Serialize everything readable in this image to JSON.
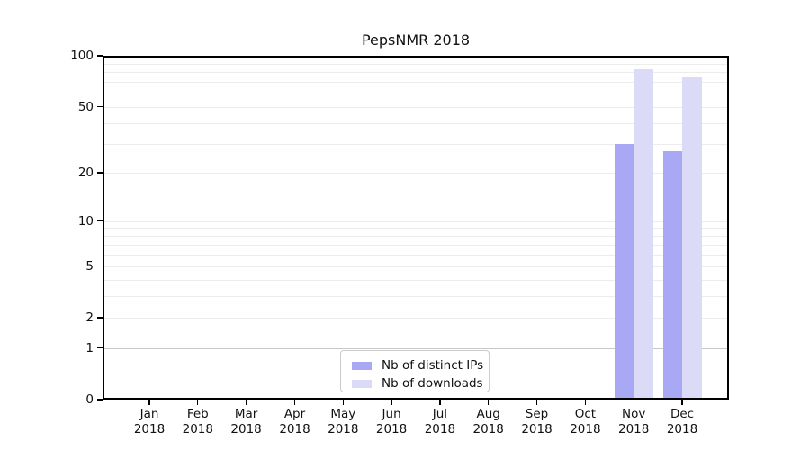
{
  "figure": {
    "title": "PepsNMR 2018",
    "background": "#ffffff"
  },
  "chart_data": {
    "type": "bar",
    "title": "PepsNMR 2018",
    "x": {
      "months": [
        "Jan",
        "Feb",
        "Mar",
        "Apr",
        "May",
        "Jun",
        "Jul",
        "Aug",
        "Sep",
        "Oct",
        "Nov",
        "Dec"
      ],
      "year": "2018"
    },
    "y_axis": {
      "scale": "log1p",
      "lim": [
        0,
        100
      ],
      "major_ticks": [
        0,
        1,
        2,
        5,
        10,
        20,
        50,
        100
      ],
      "gridlines": [
        2,
        3,
        4,
        5,
        6,
        7,
        8,
        9,
        10,
        20,
        30,
        40,
        50,
        60,
        70,
        80,
        90
      ],
      "emphasis_gridline": 1
    },
    "series": [
      {
        "name": "Nb of distinct IPs",
        "color": "#a8a8f5",
        "values": [
          0,
          0,
          0,
          0,
          0,
          0,
          0,
          0,
          0,
          0,
          30,
          27
        ]
      },
      {
        "name": "Nb of downloads",
        "color": "#dbdbf8",
        "values": [
          0,
          0,
          0,
          0,
          0,
          0,
          0,
          0,
          0,
          0,
          83,
          75
        ]
      }
    ],
    "legend": {
      "position": "lower-center"
    }
  },
  "colors": {
    "spine": "#000000",
    "grid_light": "#ececec",
    "grid_emphasis": "#c8c8c8",
    "text": "#111111",
    "legend_border": "#cccccc"
  }
}
